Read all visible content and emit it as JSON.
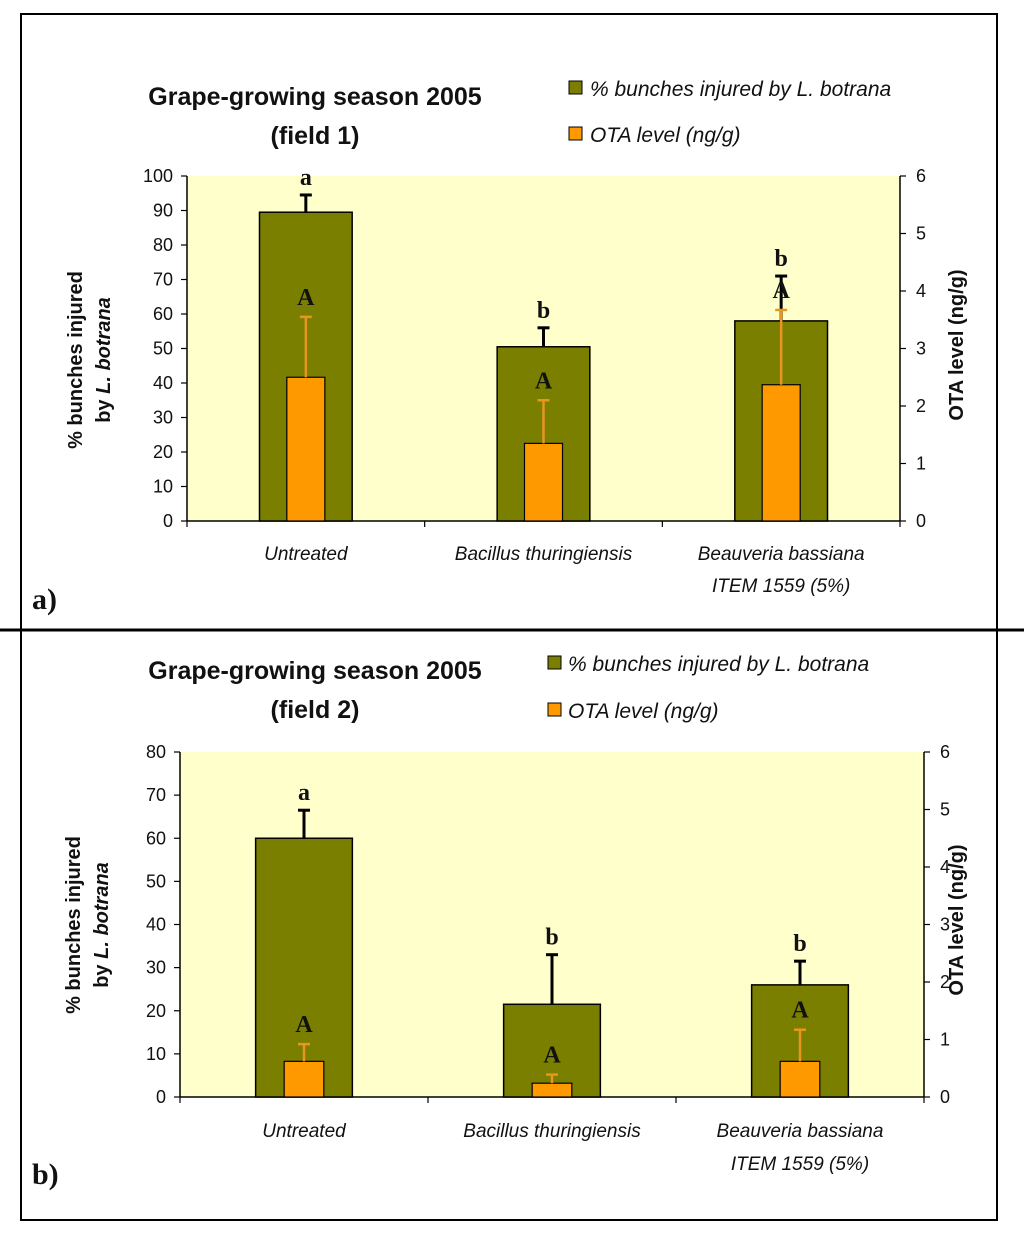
{
  "colors": {
    "bunches": "#7a7f00",
    "ota": "#ff9900",
    "plot_bg": "#ffffcc",
    "error_bunches": "#000000",
    "error_ota": "#e8961e"
  },
  "legend": {
    "bunches_label": "% bunches injured by L. botrana",
    "ota_label": "OTA level (ng/g)"
  },
  "chart_data": [
    {
      "type": "bar",
      "panel_label": "a)",
      "title_line1": "Grape-growing season 2005",
      "title_line2": "(field 1)",
      "categories": [
        {
          "line1": "Untreated",
          "line2": ""
        },
        {
          "line1": "Bacillus thuringiensis",
          "line2": ""
        },
        {
          "line1": "Beauveria bassiana",
          "line2": "ITEM 1559 (5%)"
        }
      ],
      "ylabel_line1": "% bunches injured",
      "ylabel_line2_prefix": "by ",
      "ylabel_line2_italic": "L. botrana",
      "y2label": "OTA level (ng/g)",
      "ylim": [
        0,
        100
      ],
      "yticks": [
        0,
        10,
        20,
        30,
        40,
        50,
        60,
        70,
        80,
        90,
        100
      ],
      "y2lim": [
        0,
        6
      ],
      "y2ticks": [
        0,
        1,
        2,
        3,
        4,
        5,
        6
      ],
      "series": [
        {
          "name": "% bunches injured by L. botrana",
          "axis": "left",
          "values": [
            89.5,
            50.5,
            58
          ],
          "errors": [
            5,
            5.5,
            13
          ],
          "letters": [
            "a",
            "b",
            "b"
          ]
        },
        {
          "name": "OTA level (ng/g)",
          "axis": "right",
          "values": [
            2.5,
            1.35,
            2.37
          ],
          "errors": [
            1.05,
            0.75,
            1.3
          ],
          "letters": [
            "A",
            "A",
            "A"
          ]
        }
      ]
    },
    {
      "type": "bar",
      "panel_label": "b)",
      "title_line1": "Grape-growing season 2005",
      "title_line2": "(field 2)",
      "categories": [
        {
          "line1": "Untreated",
          "line2": ""
        },
        {
          "line1": "Bacillus thuringiensis",
          "line2": ""
        },
        {
          "line1": "Beauveria bassiana",
          "line2": "ITEM 1559 (5%)"
        }
      ],
      "ylabel_line1": "% bunches injured",
      "ylabel_line2_prefix": "by ",
      "ylabel_line2_italic": "L. botrana",
      "y2label": "OTA level (ng/g)",
      "ylim": [
        0,
        80
      ],
      "yticks": [
        0,
        10,
        20,
        30,
        40,
        50,
        60,
        70,
        80
      ],
      "y2lim": [
        0,
        6
      ],
      "y2ticks": [
        0,
        1,
        2,
        3,
        4,
        5,
        6
      ],
      "series": [
        {
          "name": "% bunches injured by L. botrana",
          "axis": "left",
          "values": [
            60,
            21.5,
            26
          ],
          "errors": [
            6.5,
            11.5,
            5.5
          ],
          "letters": [
            "a",
            "b",
            "b"
          ]
        },
        {
          "name": "OTA level (ng/g)",
          "axis": "right",
          "values": [
            0.62,
            0.24,
            0.62
          ],
          "errors": [
            0.3,
            0.15,
            0.55
          ],
          "letters": [
            "A",
            "A",
            "A"
          ]
        }
      ]
    }
  ]
}
